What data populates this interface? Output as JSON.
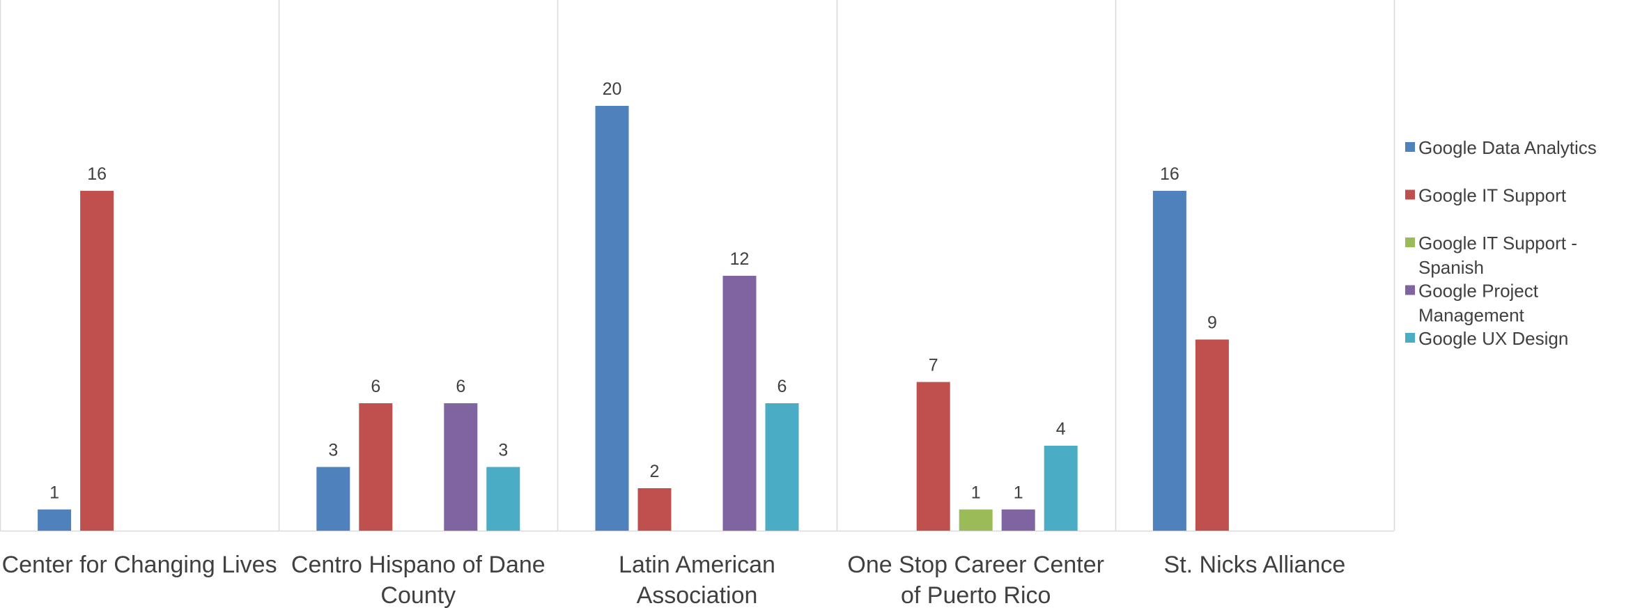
{
  "chart_data": {
    "type": "bar",
    "categories": [
      [
        "Center for Changing Lives"
      ],
      [
        "Centro Hispano of Dane",
        "County"
      ],
      [
        "Latin American",
        "Association"
      ],
      [
        "One Stop Career Center",
        "of Puerto Rico"
      ],
      [
        "St. Nicks Alliance"
      ]
    ],
    "series": [
      {
        "name": [
          "Google Data Analytics"
        ],
        "color": "#4F81BD",
        "values": [
          1,
          3,
          20,
          null,
          16
        ]
      },
      {
        "name": [
          "Google IT Support"
        ],
        "color": "#C0504D",
        "values": [
          16,
          6,
          2,
          7,
          9
        ]
      },
      {
        "name": [
          "Google IT Support -",
          "Spanish"
        ],
        "color": "#9BBB59",
        "values": [
          null,
          null,
          null,
          1,
          null
        ]
      },
      {
        "name": [
          "Google Project",
          "Management"
        ],
        "color": "#8064A2",
        "values": [
          null,
          6,
          12,
          1,
          null
        ]
      },
      {
        "name": [
          "Google UX Design"
        ],
        "color": "#4BACC6",
        "values": [
          null,
          3,
          6,
          4,
          null
        ]
      }
    ],
    "ylim": [
      0,
      25
    ],
    "grid": false,
    "legend_position": "right",
    "data_labels": true,
    "title": "",
    "xlabel": "",
    "ylabel": ""
  }
}
